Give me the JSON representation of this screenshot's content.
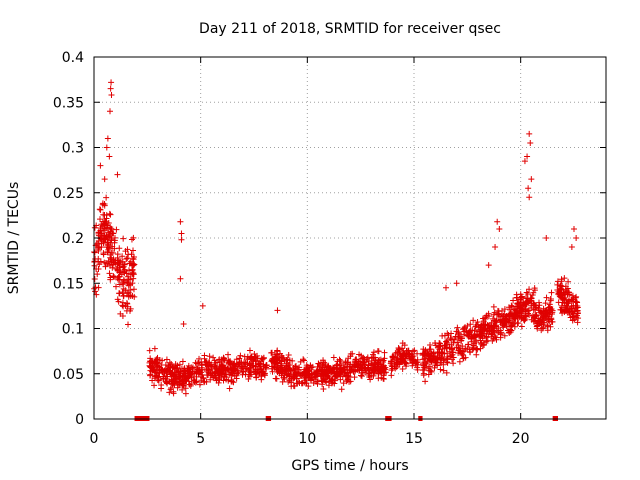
{
  "chart_data": {
    "type": "scatter",
    "title": "Day 211 of 2018, SRMTID for receiver qsec",
    "xlabel": "GPS time / hours",
    "ylabel": "SRMTID / TECUs",
    "xlim": [
      0,
      24
    ],
    "ylim": [
      0,
      0.4
    ],
    "xticks": [
      0,
      5,
      10,
      15,
      20
    ],
    "xtick_labels": [
      "0",
      "5",
      "10",
      "15",
      "20"
    ],
    "yticks": [
      0,
      0.05,
      0.1,
      0.15,
      0.2,
      0.25,
      0.3,
      0.35,
      0.4
    ],
    "ytick_labels": [
      "0",
      "0.05",
      "0.1",
      "0.15",
      "0.2",
      "0.25",
      "0.3",
      "0.35",
      "0.4"
    ],
    "grid": true,
    "marker": "+",
    "color": "#e00000",
    "series": [
      {
        "name": "SRMTID",
        "envelope_note": "approximate point cloud read from the figure",
        "segments": [
          {
            "x_range": [
              0.0,
              1.9
            ],
            "center": [
              [
                0.0,
                0.17
              ],
              [
                0.4,
                0.21
              ],
              [
                0.8,
                0.19
              ],
              [
                1.2,
                0.16
              ],
              [
                1.6,
                0.15
              ],
              [
                1.9,
                0.17
              ]
            ],
            "spread": 0.06,
            "points": 260
          },
          {
            "x_range": [
              2.6,
              8.1
            ],
            "center": [
              [
                2.6,
                0.06
              ],
              [
                3.5,
                0.045
              ],
              [
                4.5,
                0.05
              ],
              [
                5.5,
                0.055
              ],
              [
                6.5,
                0.055
              ],
              [
                7.5,
                0.06
              ],
              [
                8.1,
                0.055
              ]
            ],
            "spread": 0.025,
            "points": 520
          },
          {
            "x_range": [
              8.3,
              13.7
            ],
            "center": [
              [
                8.3,
                0.065
              ],
              [
                9.3,
                0.05
              ],
              [
                10.3,
                0.05
              ],
              [
                11.3,
                0.05
              ],
              [
                12.3,
                0.06
              ],
              [
                13.2,
                0.06
              ],
              [
                13.7,
                0.055
              ]
            ],
            "spread": 0.022,
            "points": 520
          },
          {
            "x_range": [
              13.9,
              15.2
            ],
            "center": [
              [
                13.9,
                0.06
              ],
              [
                14.5,
                0.07
              ],
              [
                15.2,
                0.065
              ]
            ],
            "spread": 0.02,
            "points": 110
          },
          {
            "x_range": [
              15.4,
              21.5
            ],
            "center": [
              [
                15.4,
                0.065
              ],
              [
                16.5,
                0.075
              ],
              [
                17.5,
                0.085
              ],
              [
                18.5,
                0.1
              ],
              [
                19.5,
                0.11
              ],
              [
                20.3,
                0.13
              ],
              [
                21.0,
                0.11
              ],
              [
                21.5,
                0.12
              ]
            ],
            "spread": 0.03,
            "points": 600
          },
          {
            "x_range": [
              21.7,
              22.7
            ],
            "center": [
              [
                21.7,
                0.14
              ],
              [
                22.2,
                0.13
              ],
              [
                22.7,
                0.12
              ]
            ],
            "spread": 0.03,
            "points": 120
          }
        ],
        "outliers": [
          {
            "x": 0.8,
            "y": 0.372
          },
          {
            "x": 0.78,
            "y": 0.365
          },
          {
            "x": 0.82,
            "y": 0.358
          },
          {
            "x": 0.75,
            "y": 0.34
          },
          {
            "x": 0.65,
            "y": 0.31
          },
          {
            "x": 0.6,
            "y": 0.3
          },
          {
            "x": 0.72,
            "y": 0.29
          },
          {
            "x": 1.1,
            "y": 0.27
          },
          {
            "x": 0.3,
            "y": 0.28
          },
          {
            "x": 0.5,
            "y": 0.265
          },
          {
            "x": 4.05,
            "y": 0.218
          },
          {
            "x": 4.1,
            "y": 0.205
          },
          {
            "x": 4.1,
            "y": 0.198
          },
          {
            "x": 4.05,
            "y": 0.155
          },
          {
            "x": 4.2,
            "y": 0.105
          },
          {
            "x": 20.4,
            "y": 0.315
          },
          {
            "x": 20.45,
            "y": 0.305
          },
          {
            "x": 20.3,
            "y": 0.29
          },
          {
            "x": 20.2,
            "y": 0.285
          },
          {
            "x": 20.5,
            "y": 0.265
          },
          {
            "x": 20.35,
            "y": 0.255
          },
          {
            "x": 20.4,
            "y": 0.245
          },
          {
            "x": 18.9,
            "y": 0.218
          },
          {
            "x": 19.0,
            "y": 0.21
          },
          {
            "x": 18.8,
            "y": 0.19
          },
          {
            "x": 21.2,
            "y": 0.2
          },
          {
            "x": 22.5,
            "y": 0.21
          },
          {
            "x": 22.6,
            "y": 0.2
          },
          {
            "x": 22.4,
            "y": 0.19
          },
          {
            "x": 18.5,
            "y": 0.17
          },
          {
            "x": 17.0,
            "y": 0.15
          },
          {
            "x": 16.5,
            "y": 0.145
          },
          {
            "x": 5.1,
            "y": 0.125
          },
          {
            "x": 8.6,
            "y": 0.12
          }
        ]
      }
    ],
    "data_gaps": [
      {
        "x_start": 1.9,
        "x_end": 2.6
      },
      {
        "x_start": 8.05,
        "x_end": 8.3
      },
      {
        "x_start": 13.65,
        "x_end": 13.95
      },
      {
        "x_start": 15.2,
        "x_end": 15.4
      },
      {
        "x_start": 21.5,
        "x_end": 21.75
      }
    ]
  }
}
